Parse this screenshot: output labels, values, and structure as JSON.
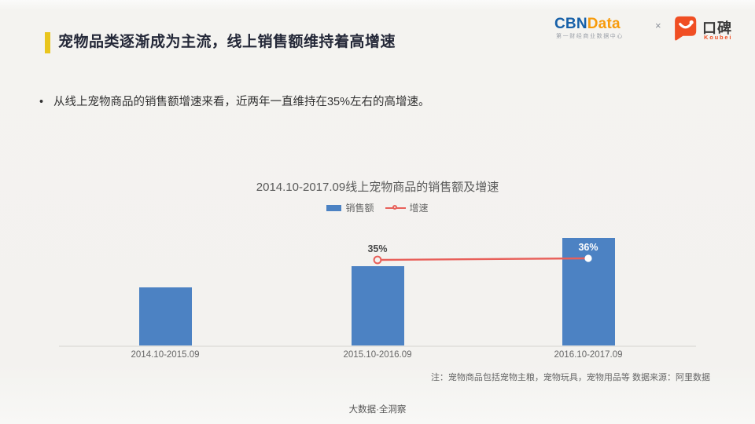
{
  "header": {
    "title": "宠物品类逐渐成为主流，线上销售额维持着高增速",
    "accent_color": "#E9C51D",
    "logos": {
      "cbn_part1": "CBN",
      "cbn_part2": "Data",
      "cbn_subtitle": "第一财经商业数据中心",
      "cbn_blue": "#1760A8",
      "cbn_orange": "#F79B0B",
      "times": "×",
      "koubei_name": "口碑",
      "koubei_sub": "Koubei",
      "koubei_orange": "#F04E23"
    }
  },
  "bullet": {
    "marker": "•",
    "text": "从线上宠物商品的销售额增速来看，近两年一直维持在35%左右的高增速。"
  },
  "chart": {
    "title": "2014.10-2017.09线上宠物商品的销售额及增速",
    "legend": [
      {
        "label": "销售额",
        "type": "bar"
      },
      {
        "label": "增速",
        "type": "line"
      }
    ]
  },
  "chart_data": {
    "type": "bar+line",
    "title": "2014.10-2017.09线上宠物商品的销售额及增速",
    "categories": [
      "2014.10-2015.09",
      "2015.10-2016.09",
      "2016.10-2017.09"
    ],
    "series": [
      {
        "name": "销售额",
        "type": "bar",
        "values": [
          100,
          135,
          184
        ],
        "note": "relative sales index; value axis not shown in figure"
      },
      {
        "name": "增速",
        "type": "line",
        "values": [
          null,
          35,
          36
        ],
        "labels": [
          "",
          "35%",
          "36%"
        ],
        "unit": "%"
      }
    ],
    "bar_color": "#4C82C3",
    "line_color": "#E8605A",
    "grid": false,
    "value_axis_hidden": true,
    "legend_position": "top-center"
  },
  "notes": {
    "source": "注：宠物商品包括宠物主粮，宠物玩具，宠物用品等  数据来源：阿里数据"
  },
  "footer": {
    "text": "大数据·全洞察"
  }
}
